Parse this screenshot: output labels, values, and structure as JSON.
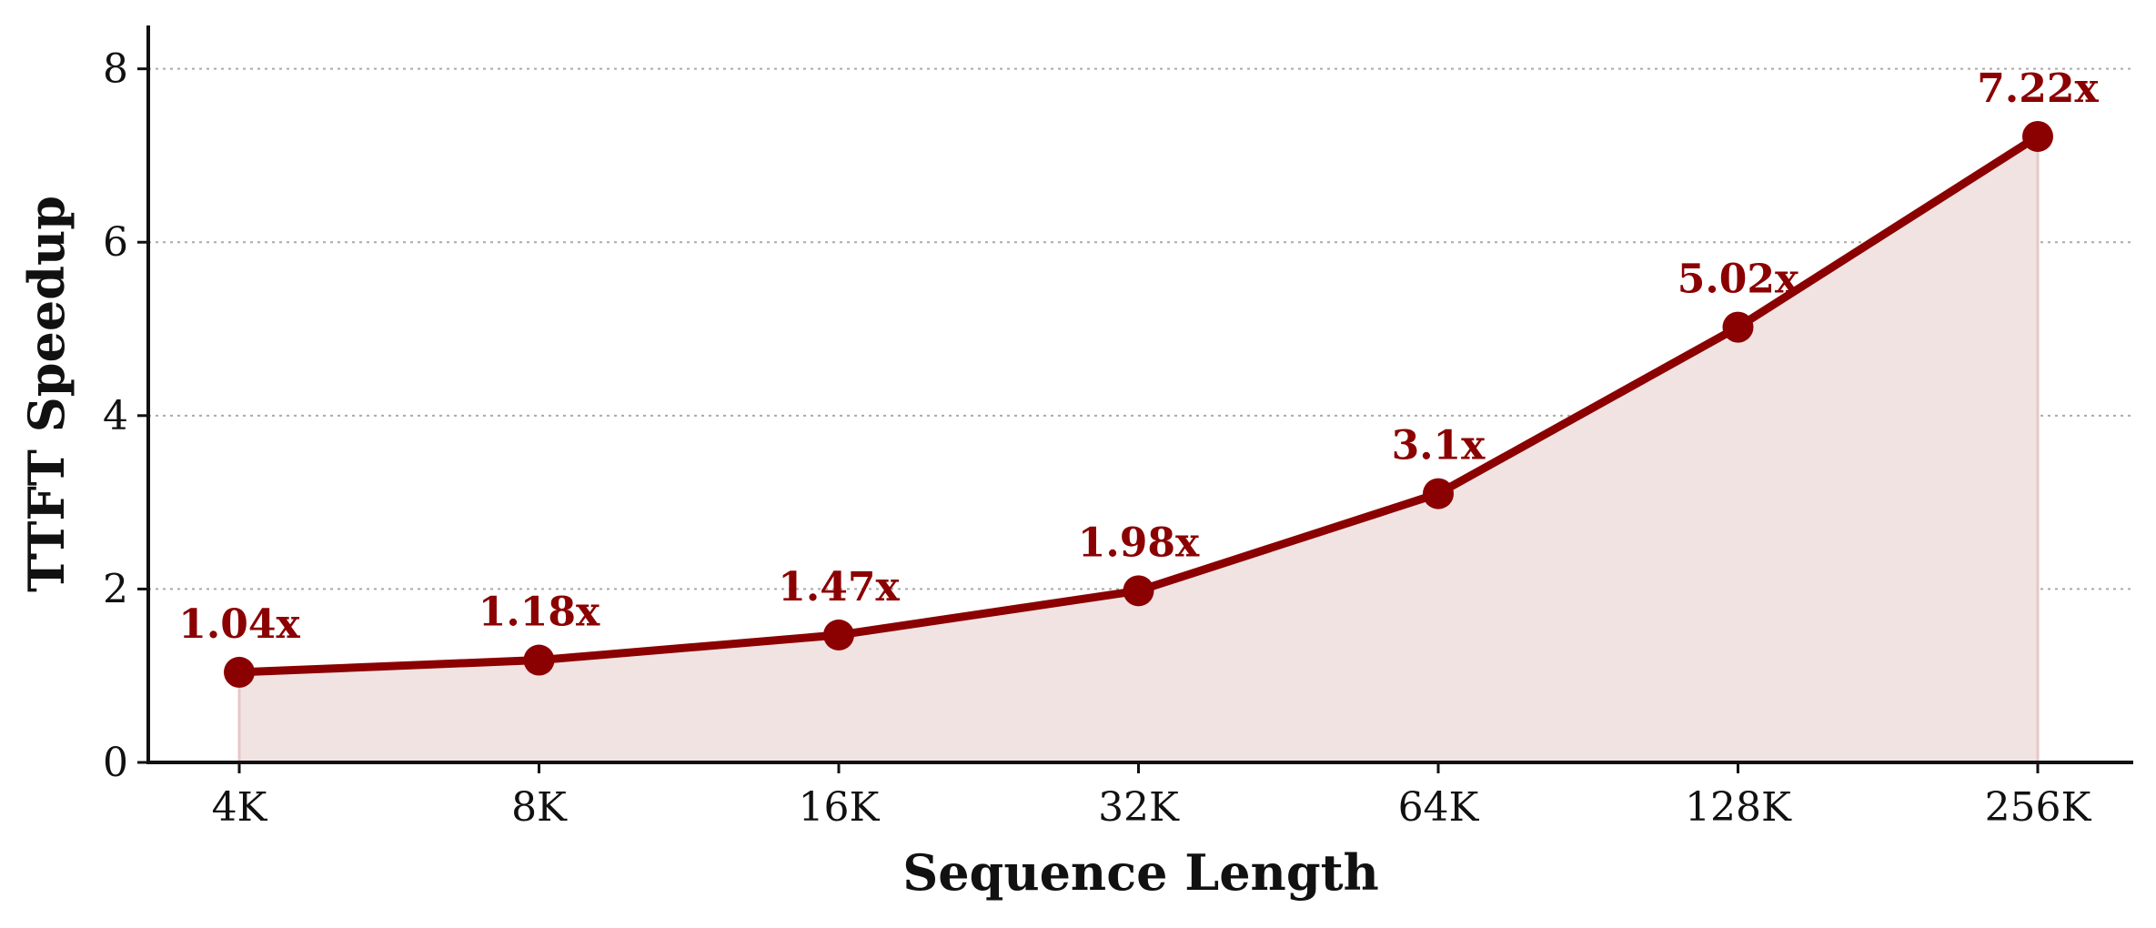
{
  "chart_data": {
    "type": "line",
    "title": "",
    "xlabel": "Sequence Length",
    "ylabel": "TTFT Speedup",
    "categories": [
      "4K",
      "8K",
      "16K",
      "32K",
      "64K",
      "128K",
      "256K"
    ],
    "series": [
      {
        "values": [
          1.04,
          1.18,
          1.47,
          1.98,
          3.1,
          5.02,
          7.22
        ],
        "labels": [
          "1.04x",
          "1.18x",
          "1.47x",
          "1.98x",
          "3.1x",
          "5.02x",
          "7.22x"
        ]
      }
    ],
    "ylim": [
      0,
      8.5
    ],
    "yticks": [
      0,
      2,
      4,
      6,
      8
    ],
    "grid": "y-dotted",
    "area_fill": true,
    "colors": {
      "line": "#8b0000",
      "fill": "#f2e3e3",
      "grid": "#aaaaaa",
      "axis": "#111111"
    }
  }
}
